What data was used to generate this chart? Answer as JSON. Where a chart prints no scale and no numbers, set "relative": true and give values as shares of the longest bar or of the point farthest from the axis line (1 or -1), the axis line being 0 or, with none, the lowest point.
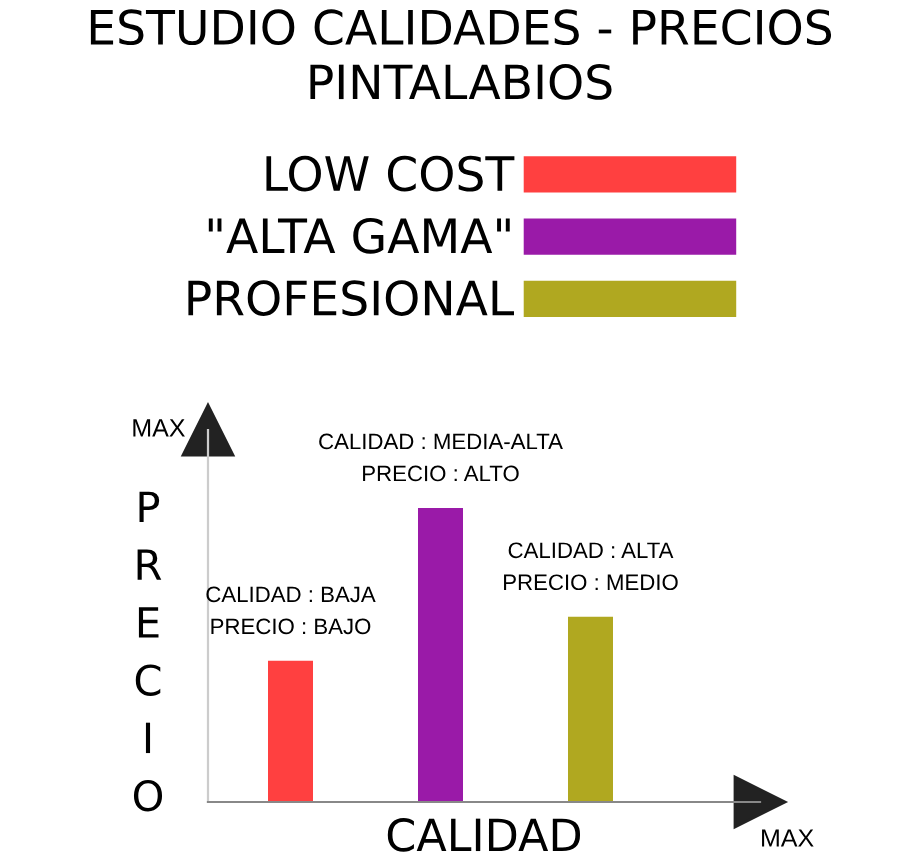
{
  "chart_data": {
    "type": "bar",
    "title": "ESTUDIO CALIDADES - PRECIOS\nPINTALABIOS",
    "xlabel": "CALIDAD",
    "ylabel": "PRECIO",
    "categories": [
      null,
      null,
      null
    ],
    "series": [
      {
        "name": "LOW COST",
        "color": "#ff4040",
        "values": [
          0.48,
          null,
          null
        ]
      },
      {
        "name": "\"ALTA GAMA\"",
        "color": "#9a1aa8",
        "values": [
          null,
          1,
          null
        ]
      },
      {
        "name": "PROFESIONAL",
        "color": "#b0a820",
        "values": [
          null,
          null,
          0.63
        ]
      }
    ],
    "relative": true,
    "stacked": true,
    "legend": "top",
    "grid": false,
    "annotations": [
      {
        "text": "CALIDAD : BAJA\nPRECIO : BAJO",
        "y": 0.48
      },
      {
        "text": "CALIDAD : MEDIA-ALTA\nPRECIO : ALTO",
        "y": 1
      },
      {
        "text": "CALIDAD : ALTA\nPRECIO : MEDIO",
        "y": 0.63
      },
      "MAX",
      "MAX"
    ]
  }
}
